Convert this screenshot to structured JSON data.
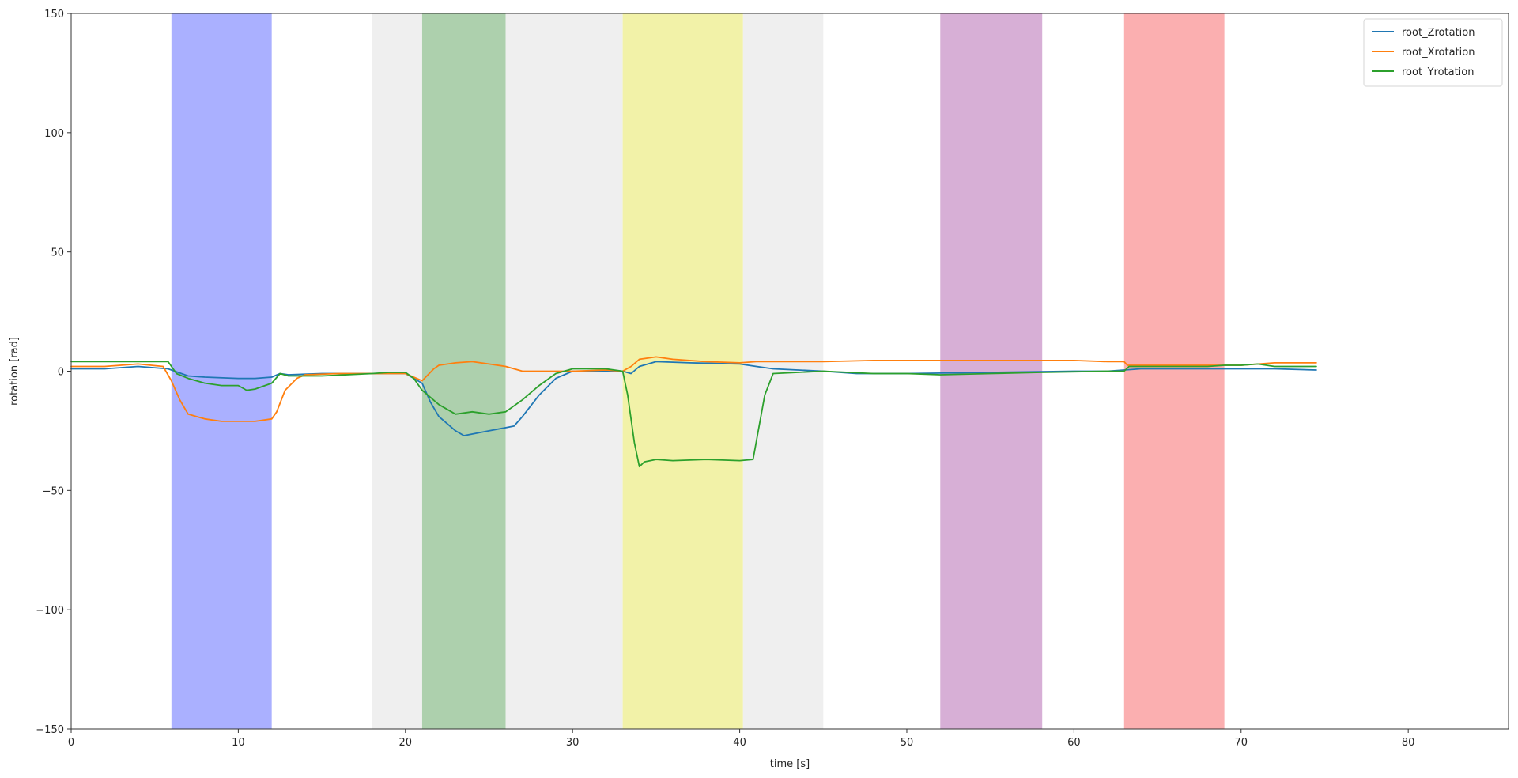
{
  "chart_data": {
    "type": "line",
    "title": "",
    "xlabel": "time [s]",
    "ylabel": "rotation [rad]",
    "xlim": [
      0,
      86
    ],
    "ylim": [
      -150,
      150
    ],
    "xticks": [
      0,
      10,
      20,
      30,
      40,
      50,
      60,
      70,
      80
    ],
    "yticks": [
      -150,
      -100,
      -50,
      0,
      50,
      100,
      150
    ],
    "grid": false,
    "legend": "top-right",
    "bands": [
      {
        "start": 6,
        "end": 12,
        "color": "#aab0ff"
      },
      {
        "start": 18,
        "end": 21,
        "color": "#efefef"
      },
      {
        "start": 21,
        "end": 26,
        "color": "#add0ad"
      },
      {
        "start": 26,
        "end": 33,
        "color": "#efefef"
      },
      {
        "start": 33,
        "end": 40.2,
        "color": "#f2f2a8"
      },
      {
        "start": 40.2,
        "end": 45,
        "color": "#efefef"
      },
      {
        "start": 52,
        "end": 58.1,
        "color": "#d7afd6"
      },
      {
        "start": 63,
        "end": 69,
        "color": "#fbafb0"
      }
    ],
    "series": [
      {
        "name": "root_Zrotation",
        "color": "#1f77b4",
        "points": [
          [
            0,
            1
          ],
          [
            2,
            1
          ],
          [
            4,
            2
          ],
          [
            5.8,
            1
          ],
          [
            7,
            -2
          ],
          [
            8,
            -2.5
          ],
          [
            10,
            -3
          ],
          [
            11,
            -3
          ],
          [
            12,
            -2.5
          ],
          [
            12.5,
            -1
          ],
          [
            13,
            -1.5
          ],
          [
            15,
            -1
          ],
          [
            18,
            -1
          ],
          [
            20,
            -1
          ],
          [
            21,
            -5
          ],
          [
            21.5,
            -13
          ],
          [
            22,
            -19
          ],
          [
            23,
            -25
          ],
          [
            23.5,
            -27
          ],
          [
            25,
            -25
          ],
          [
            26.5,
            -23
          ],
          [
            27,
            -19
          ],
          [
            28,
            -10
          ],
          [
            29,
            -3
          ],
          [
            30,
            0
          ],
          [
            32,
            0
          ],
          [
            33,
            0
          ],
          [
            33.5,
            -1
          ],
          [
            34,
            2
          ],
          [
            35,
            4
          ],
          [
            37,
            3.5
          ],
          [
            40,
            3
          ],
          [
            41,
            2
          ],
          [
            42,
            1
          ],
          [
            45,
            0
          ],
          [
            47,
            -1
          ],
          [
            50,
            -1
          ],
          [
            55,
            -0.5
          ],
          [
            60,
            0
          ],
          [
            62,
            0
          ],
          [
            63,
            0.5
          ],
          [
            64,
            1
          ],
          [
            68,
            1
          ],
          [
            70,
            1
          ],
          [
            72,
            1
          ],
          [
            74.5,
            0.5
          ]
        ]
      },
      {
        "name": "root_Xrotation",
        "color": "#ff7f0e",
        "points": [
          [
            0,
            2
          ],
          [
            2,
            2
          ],
          [
            4,
            3
          ],
          [
            5.5,
            2
          ],
          [
            6,
            -4
          ],
          [
            6.5,
            -12
          ],
          [
            7,
            -18
          ],
          [
            8,
            -20
          ],
          [
            9,
            -21
          ],
          [
            11,
            -21
          ],
          [
            12,
            -20
          ],
          [
            12.3,
            -17
          ],
          [
            12.8,
            -8
          ],
          [
            13.5,
            -3
          ],
          [
            14,
            -1.5
          ],
          [
            16,
            -1
          ],
          [
            18,
            -1
          ],
          [
            20,
            -1
          ],
          [
            21,
            -4
          ],
          [
            21.7,
            1
          ],
          [
            22,
            2.5
          ],
          [
            23,
            3.5
          ],
          [
            24,
            4
          ],
          [
            25,
            3
          ],
          [
            26,
            2
          ],
          [
            27,
            0
          ],
          [
            30,
            0
          ],
          [
            32,
            0.5
          ],
          [
            33,
            0
          ],
          [
            33.5,
            2
          ],
          [
            34,
            5
          ],
          [
            35,
            6
          ],
          [
            36,
            5
          ],
          [
            38,
            4
          ],
          [
            40,
            3.5
          ],
          [
            41,
            4
          ],
          [
            45,
            4
          ],
          [
            48,
            4.5
          ],
          [
            55,
            4.5
          ],
          [
            60,
            4.5
          ],
          [
            62,
            4
          ],
          [
            63,
            4
          ],
          [
            63.2,
            2.5
          ],
          [
            70,
            2.5
          ],
          [
            72,
            3.5
          ],
          [
            74.5,
            3.5
          ]
        ]
      },
      {
        "name": "root_Yrotation",
        "color": "#2ca02c",
        "points": [
          [
            0,
            4
          ],
          [
            2,
            4
          ],
          [
            4,
            4
          ],
          [
            5.8,
            4
          ],
          [
            6.3,
            -1
          ],
          [
            7,
            -3
          ],
          [
            8,
            -5
          ],
          [
            9,
            -6
          ],
          [
            10,
            -6
          ],
          [
            10.5,
            -8
          ],
          [
            11,
            -7.5
          ],
          [
            12,
            -5
          ],
          [
            12.5,
            -1
          ],
          [
            13,
            -2
          ],
          [
            15,
            -2
          ],
          [
            18,
            -1
          ],
          [
            19,
            -0.5
          ],
          [
            20,
            -0.5
          ],
          [
            20.5,
            -3
          ],
          [
            21,
            -8
          ],
          [
            22,
            -14
          ],
          [
            23,
            -18
          ],
          [
            24,
            -17
          ],
          [
            25,
            -18
          ],
          [
            26,
            -17
          ],
          [
            27,
            -12
          ],
          [
            28,
            -6
          ],
          [
            29,
            -1
          ],
          [
            30,
            1
          ],
          [
            32,
            1
          ],
          [
            33,
            0
          ],
          [
            33.3,
            -10
          ],
          [
            33.7,
            -30
          ],
          [
            34,
            -40
          ],
          [
            34.3,
            -38
          ],
          [
            35,
            -37
          ],
          [
            36,
            -37.5
          ],
          [
            38,
            -37
          ],
          [
            40,
            -37.5
          ],
          [
            40.8,
            -37
          ],
          [
            41.5,
            -10
          ],
          [
            42,
            -1
          ],
          [
            45,
            0
          ],
          [
            48,
            -1
          ],
          [
            50,
            -1
          ],
          [
            52,
            -1.5
          ],
          [
            55,
            -1
          ],
          [
            58,
            -0.5
          ],
          [
            62,
            0
          ],
          [
            63,
            0
          ],
          [
            63.3,
            2
          ],
          [
            68,
            2
          ],
          [
            69,
            2.5
          ],
          [
            70,
            2.5
          ],
          [
            71,
            3
          ],
          [
            72,
            2
          ],
          [
            74.5,
            2
          ]
        ]
      }
    ]
  }
}
